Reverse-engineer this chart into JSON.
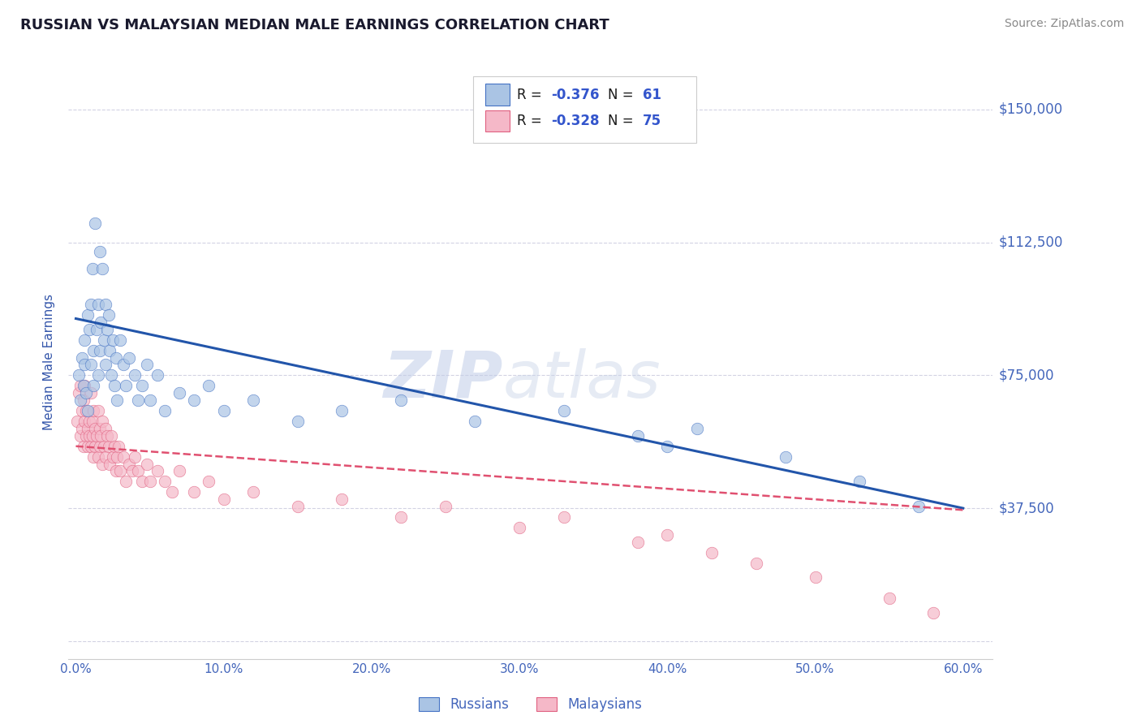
{
  "title": "RUSSIAN VS MALAYSIAN MEDIAN MALE EARNINGS CORRELATION CHART",
  "source_text": "Source: ZipAtlas.com",
  "ylabel": "Median Male Earnings",
  "watermark_zip": "ZIP",
  "watermark_atlas": "atlas",
  "xlim": [
    -0.005,
    0.62
  ],
  "ylim": [
    -5000,
    162500
  ],
  "yticks": [
    0,
    37500,
    75000,
    112500,
    150000
  ],
  "ytick_labels": [
    "",
    "$37,500",
    "$75,000",
    "$112,500",
    "$150,000"
  ],
  "xticks": [
    0.0,
    0.1,
    0.2,
    0.3,
    0.4,
    0.5,
    0.6
  ],
  "xtick_labels": [
    "0.0%",
    "10.0%",
    "20.0%",
    "30.0%",
    "40.0%",
    "50.0%",
    "60.0%"
  ],
  "russian_fill_color": "#aac4e4",
  "malaysian_fill_color": "#f5b8c8",
  "russian_edge_color": "#4472c4",
  "malaysian_edge_color": "#e06080",
  "russian_line_color": "#2255aa",
  "malaysian_line_color": "#e05070",
  "title_color": "#1a1a2e",
  "axis_label_color": "#3355aa",
  "tick_label_color": "#4466bb",
  "legend_text_dark": "#1a1a1a",
  "legend_value_color": "#3355cc",
  "background_color": "#ffffff",
  "grid_color": "#c8c8dc",
  "source_color": "#888888",
  "russian_R": "-0.376",
  "russian_N": "61",
  "malaysian_R": "-0.328",
  "malaysian_N": "75",
  "russian_trend_x0": 0.0,
  "russian_trend_y0": 91000,
  "russian_trend_x1": 0.6,
  "russian_trend_y1": 37500,
  "malaysian_trend_x0": 0.0,
  "malaysian_trend_y0": 55000,
  "malaysian_trend_x1": 0.6,
  "malaysian_trend_y1": 37000,
  "russians_scatter_x": [
    0.002,
    0.003,
    0.004,
    0.005,
    0.006,
    0.006,
    0.007,
    0.008,
    0.008,
    0.009,
    0.01,
    0.01,
    0.011,
    0.012,
    0.012,
    0.013,
    0.014,
    0.015,
    0.015,
    0.016,
    0.016,
    0.017,
    0.018,
    0.019,
    0.02,
    0.02,
    0.021,
    0.022,
    0.023,
    0.024,
    0.025,
    0.026,
    0.027,
    0.028,
    0.03,
    0.032,
    0.034,
    0.036,
    0.04,
    0.042,
    0.045,
    0.048,
    0.05,
    0.055,
    0.06,
    0.07,
    0.08,
    0.09,
    0.1,
    0.12,
    0.15,
    0.18,
    0.22,
    0.27,
    0.33,
    0.38,
    0.4,
    0.42,
    0.48,
    0.53,
    0.57
  ],
  "russians_scatter_y": [
    75000,
    68000,
    80000,
    72000,
    85000,
    78000,
    70000,
    92000,
    65000,
    88000,
    95000,
    78000,
    105000,
    82000,
    72000,
    118000,
    88000,
    95000,
    75000,
    110000,
    82000,
    90000,
    105000,
    85000,
    95000,
    78000,
    88000,
    92000,
    82000,
    75000,
    85000,
    72000,
    80000,
    68000,
    85000,
    78000,
    72000,
    80000,
    75000,
    68000,
    72000,
    78000,
    68000,
    75000,
    65000,
    70000,
    68000,
    72000,
    65000,
    68000,
    62000,
    65000,
    68000,
    62000,
    65000,
    58000,
    55000,
    60000,
    52000,
    45000,
    38000
  ],
  "malaysians_scatter_x": [
    0.001,
    0.002,
    0.003,
    0.003,
    0.004,
    0.004,
    0.005,
    0.005,
    0.006,
    0.006,
    0.007,
    0.007,
    0.008,
    0.008,
    0.009,
    0.009,
    0.01,
    0.01,
    0.011,
    0.011,
    0.012,
    0.012,
    0.013,
    0.013,
    0.014,
    0.015,
    0.015,
    0.016,
    0.016,
    0.017,
    0.018,
    0.018,
    0.019,
    0.02,
    0.02,
    0.021,
    0.022,
    0.023,
    0.024,
    0.025,
    0.026,
    0.027,
    0.028,
    0.029,
    0.03,
    0.032,
    0.034,
    0.036,
    0.038,
    0.04,
    0.042,
    0.045,
    0.048,
    0.05,
    0.055,
    0.06,
    0.065,
    0.07,
    0.08,
    0.09,
    0.1,
    0.12,
    0.15,
    0.18,
    0.22,
    0.25,
    0.3,
    0.33,
    0.38,
    0.4,
    0.43,
    0.46,
    0.5,
    0.55,
    0.58
  ],
  "malaysians_scatter_y": [
    62000,
    70000,
    58000,
    72000,
    65000,
    60000,
    68000,
    55000,
    62000,
    72000,
    58000,
    65000,
    60000,
    55000,
    62000,
    58000,
    70000,
    55000,
    62000,
    58000,
    65000,
    52000,
    60000,
    55000,
    58000,
    65000,
    52000,
    60000,
    55000,
    58000,
    62000,
    50000,
    55000,
    60000,
    52000,
    58000,
    55000,
    50000,
    58000,
    52000,
    55000,
    48000,
    52000,
    55000,
    48000,
    52000,
    45000,
    50000,
    48000,
    52000,
    48000,
    45000,
    50000,
    45000,
    48000,
    45000,
    42000,
    48000,
    42000,
    45000,
    40000,
    42000,
    38000,
    40000,
    35000,
    38000,
    32000,
    35000,
    28000,
    30000,
    25000,
    22000,
    18000,
    12000,
    8000
  ]
}
